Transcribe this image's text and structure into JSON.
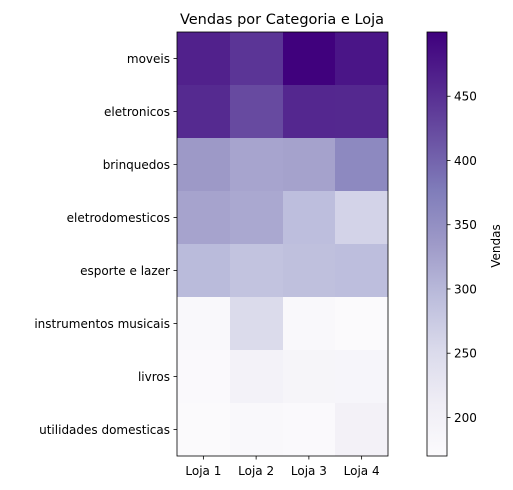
{
  "chart_data": {
    "type": "heatmap",
    "title": "Vendas por Categoria e Loja",
    "xlabel": "",
    "ylabel": "",
    "columns": [
      "Loja 1",
      "Loja 2",
      "Loja 3",
      "Loja 4"
    ],
    "rows": [
      "moveis",
      "eletronicos",
      "brinquedos",
      "eletrodomesticos",
      "esporte e lazer",
      "instrumentos musicais",
      "livros",
      "utilidades domesticas"
    ],
    "values": [
      [
        465,
        445,
        499,
        478
      ],
      [
        456,
        424,
        459,
        458
      ],
      [
        337,
        323,
        326,
        359
      ],
      [
        324,
        318,
        292,
        262
      ],
      [
        296,
        285,
        290,
        292
      ],
      [
        180,
        251,
        178,
        173
      ],
      [
        175,
        197,
        189,
        188
      ],
      [
        173,
        179,
        177,
        199
      ]
    ],
    "colorbar": {
      "label": "Vendas",
      "min": 170,
      "max": 500,
      "ticks": [
        200,
        250,
        300,
        350,
        400,
        450
      ]
    },
    "colormap": [
      "#fcfbfd",
      "#efedf5",
      "#dadaeb",
      "#bcbddc",
      "#9e9ac8",
      "#807dba",
      "#6a51a3",
      "#54278f",
      "#3f007d"
    ],
    "grid": false,
    "legend": "colorbar-right"
  }
}
